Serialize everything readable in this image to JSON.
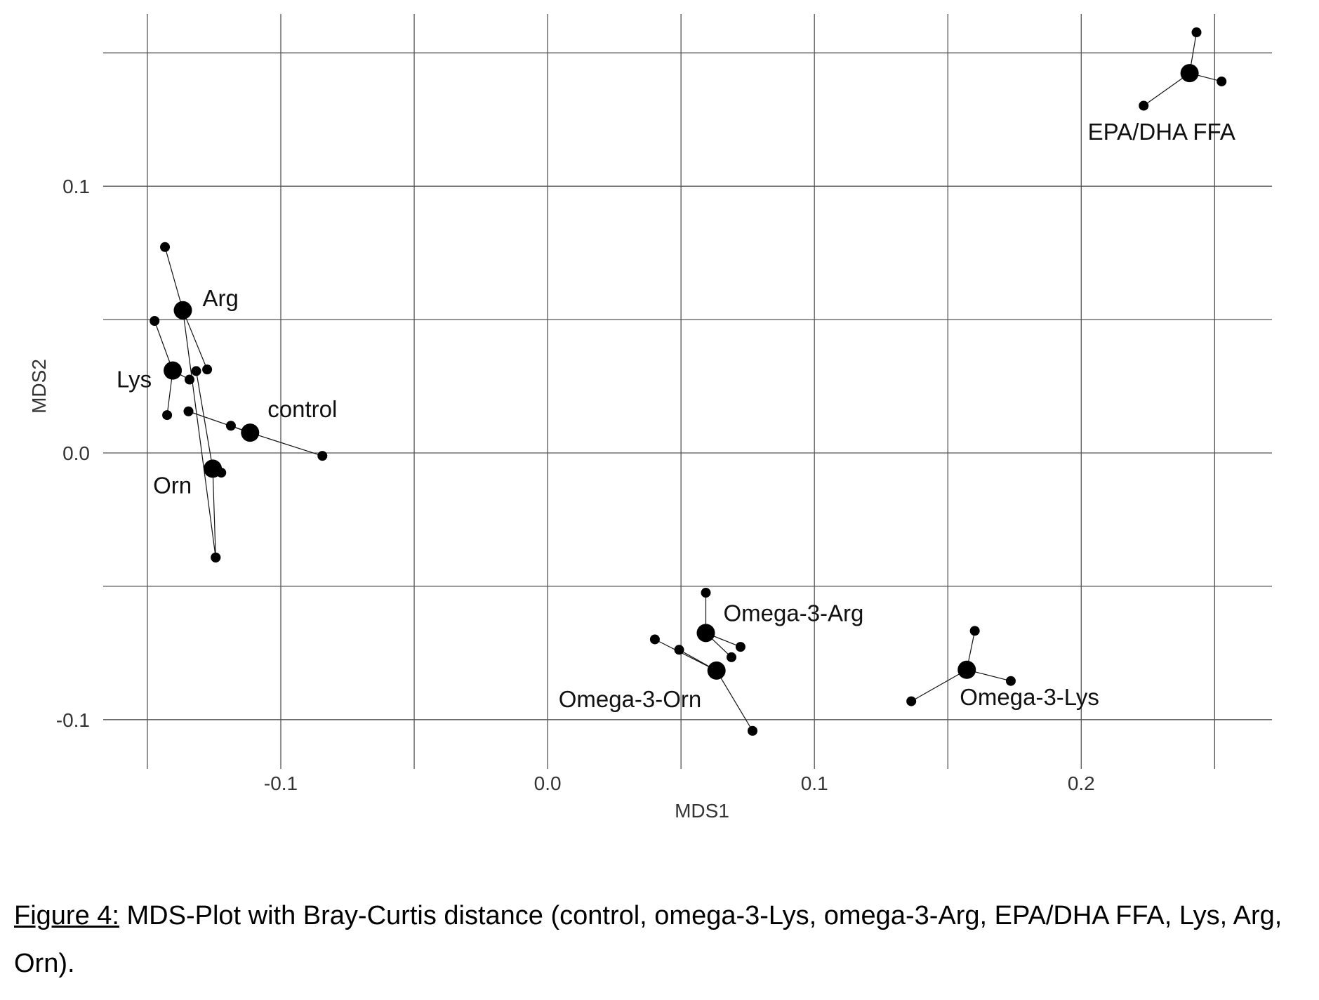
{
  "chart_data": {
    "type": "scatter",
    "title": "",
    "xlabel": "MDS1",
    "ylabel": "MDS2",
    "xlim": [
      -0.15,
      0.27
    ],
    "ylim": [
      -0.12,
      0.16
    ],
    "xgrid": [
      -0.15,
      -0.1,
      -0.05,
      0.0,
      0.05,
      0.1,
      0.15,
      0.2,
      0.25
    ],
    "ygrid": [
      -0.1,
      -0.05,
      0.0,
      0.05,
      0.1,
      0.15
    ],
    "xticks": [
      {
        "value": -0.1,
        "label": "-0.1"
      },
      {
        "value": 0.0,
        "label": "0.0"
      },
      {
        "value": 0.1,
        "label": "0.1"
      },
      {
        "value": 0.2,
        "label": "0.2"
      }
    ],
    "yticks": [
      {
        "value": 0.1,
        "label": "0.1"
      },
      {
        "value": 0.0,
        "label": "0.0"
      },
      {
        "value": -0.1,
        "label": "-0.1"
      }
    ],
    "grid": true,
    "legend": "none",
    "groups": [
      {
        "name": "EPA/DHA FFA",
        "centroid": [
          0.2406,
          0.1424
        ],
        "points": [
          [
            0.2432,
            0.1577
          ],
          [
            0.2526,
            0.1393
          ],
          [
            0.2234,
            0.1302
          ]
        ]
      },
      {
        "name": "Arg",
        "centroid": [
          -0.1367,
          0.0535
        ],
        "points": [
          [
            -0.1434,
            0.0772
          ],
          [
            -0.1276,
            0.0313
          ],
          [
            -0.1244,
            -0.0392
          ]
        ]
      },
      {
        "name": "Lys",
        "centroid": [
          -0.1405,
          0.0309
        ],
        "points": [
          [
            -0.1473,
            0.0495
          ],
          [
            -0.1426,
            0.0142
          ],
          [
            -0.1342,
            0.0275
          ]
        ]
      },
      {
        "name": "control",
        "centroid": [
          -0.1115,
          0.0076
        ],
        "points": [
          [
            -0.1346,
            0.0156
          ],
          [
            -0.1187,
            0.0102
          ],
          [
            -0.0844,
            -0.0011
          ]
        ]
      },
      {
        "name": "Orn",
        "centroid": [
          -0.1255,
          -0.0059
        ],
        "points": [
          [
            -0.1317,
            0.0307
          ],
          [
            -0.1223,
            -0.0074
          ],
          [
            -0.1244,
            -0.0392
          ]
        ]
      },
      {
        "name": "Omega-3-Arg",
        "centroid": [
          0.0593,
          -0.0675
        ],
        "points": [
          [
            0.0593,
            -0.0524
          ],
          [
            0.0723,
            -0.0727
          ],
          [
            0.0689,
            -0.0766
          ]
        ]
      },
      {
        "name": "Omega-3-Orn",
        "centroid": [
          0.0633,
          -0.0816
        ],
        "points": [
          [
            0.0402,
            -0.0699
          ],
          [
            0.0493,
            -0.0738
          ],
          [
            0.0768,
            -0.1042
          ]
        ]
      },
      {
        "name": "Omega-3-Lys",
        "centroid": [
          0.1571,
          -0.0813
        ],
        "points": [
          [
            0.1601,
            -0.0667
          ],
          [
            0.1736,
            -0.0855
          ],
          [
            0.1363,
            -0.0931
          ]
        ]
      }
    ]
  },
  "caption": {
    "figure_label": "Figure 4:",
    "text": " MDS-Plot with Bray-Curtis distance (control, omega-3-Lys, omega-3-Arg, EPA/DHA FFA, Lys, Arg, Orn)."
  }
}
